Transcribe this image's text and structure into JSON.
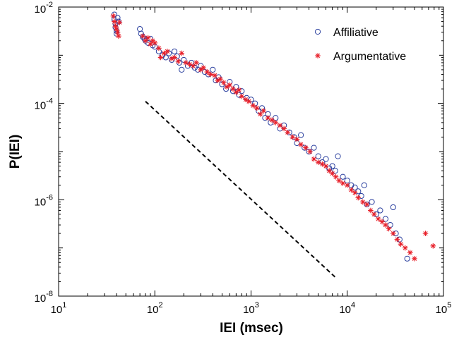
{
  "chart_data": {
    "type": "scatter",
    "title": "",
    "xlabel": "IEI (msec)",
    "ylabel": "P(IEI)",
    "x_scale": "log",
    "y_scale": "log",
    "xlim": [
      10,
      100000
    ],
    "ylim": [
      1e-08,
      0.01
    ],
    "x_ticks": [
      {
        "value": 10,
        "base": "10",
        "exp": "1"
      },
      {
        "value": 100,
        "base": "10",
        "exp": "2"
      },
      {
        "value": 1000,
        "base": "10",
        "exp": "3"
      },
      {
        "value": 10000,
        "base": "10",
        "exp": "4"
      },
      {
        "value": 100000,
        "base": "10",
        "exp": "5"
      }
    ],
    "y_ticks": [
      {
        "value": 1e-08,
        "base": "10",
        "exp": "-8"
      },
      {
        "value": 1e-06,
        "base": "10",
        "exp": "-6"
      },
      {
        "value": 0.0001,
        "base": "10",
        "exp": "-4"
      },
      {
        "value": 0.01,
        "base": "10",
        "exp": "-2"
      }
    ],
    "grid": false,
    "legend_position": "top-right",
    "series": [
      {
        "name": "Affiliative",
        "marker": "circle",
        "color": "#2a3f9e",
        "points": [
          [
            38,
            0.007
          ],
          [
            38,
            0.0055
          ],
          [
            39,
            0.0045
          ],
          [
            39,
            0.0038
          ],
          [
            40,
            0.0032
          ],
          [
            40,
            0.0028
          ],
          [
            41,
            0.006
          ],
          [
            42,
            0.005
          ],
          [
            70,
            0.0035
          ],
          [
            72,
            0.0028
          ],
          [
            75,
            0.0024
          ],
          [
            78,
            0.0022
          ],
          [
            80,
            0.002
          ],
          [
            85,
            0.0018
          ],
          [
            90,
            0.0022
          ],
          [
            95,
            0.0016
          ],
          [
            100,
            0.0015
          ],
          [
            110,
            0.0012
          ],
          [
            120,
            0.001
          ],
          [
            130,
            0.0009
          ],
          [
            140,
            0.0011
          ],
          [
            150,
            0.0008
          ],
          [
            160,
            0.0012
          ],
          [
            170,
            0.00095
          ],
          [
            180,
            0.0007
          ],
          [
            190,
            0.0005
          ],
          [
            200,
            0.0008
          ],
          [
            220,
            0.0006
          ],
          [
            240,
            0.0007
          ],
          [
            260,
            0.00055
          ],
          [
            280,
            0.0005
          ],
          [
            300,
            0.0006
          ],
          [
            330,
            0.00045
          ],
          [
            360,
            0.0004
          ],
          [
            400,
            0.0005
          ],
          [
            430,
            0.0003
          ],
          [
            460,
            0.00035
          ],
          [
            500,
            0.00025
          ],
          [
            550,
            0.0002
          ],
          [
            600,
            0.00028
          ],
          [
            650,
            0.00018
          ],
          [
            700,
            0.00022
          ],
          [
            750,
            0.00015
          ],
          [
            800,
            0.00018
          ],
          [
            900,
            0.00013
          ],
          [
            1000,
            0.00012
          ],
          [
            1100,
            0.0001
          ],
          [
            1200,
            7e-05
          ],
          [
            1300,
            8e-05
          ],
          [
            1400,
            5e-05
          ],
          [
            1500,
            6e-05
          ],
          [
            1600,
            4e-05
          ],
          [
            1800,
            5e-05
          ],
          [
            2000,
            3e-05
          ],
          [
            2200,
            3.5e-05
          ],
          [
            2500,
            2.5e-05
          ],
          [
            2800,
            2e-05
          ],
          [
            3000,
            1.5e-05
          ],
          [
            3300,
            2.2e-05
          ],
          [
            3600,
            1.2e-05
          ],
          [
            4000,
            1e-05
          ],
          [
            4500,
            1.2e-05
          ],
          [
            5000,
            8e-06
          ],
          [
            5500,
            6e-06
          ],
          [
            6000,
            7e-06
          ],
          [
            6500,
            4.5e-06
          ],
          [
            7000,
            5e-06
          ],
          [
            7500,
            4e-06
          ],
          [
            8000,
            8e-06
          ],
          [
            9000,
            3e-06
          ],
          [
            10000,
            2.5e-06
          ],
          [
            11000,
            2e-06
          ],
          [
            12000,
            1.8e-06
          ],
          [
            13000,
            1.5e-06
          ],
          [
            14000,
            1.2e-06
          ],
          [
            15000,
            2e-06
          ],
          [
            16000,
            8e-07
          ],
          [
            18000,
            9e-07
          ],
          [
            20000,
            5e-07
          ],
          [
            22000,
            6e-07
          ],
          [
            25000,
            4e-07
          ],
          [
            28000,
            3e-07
          ],
          [
            30000,
            7e-07
          ],
          [
            32000,
            2e-07
          ],
          [
            35000,
            1.5e-07
          ],
          [
            42000,
            6e-08
          ]
        ]
      },
      {
        "name": "Argumentative",
        "marker": "asterisk",
        "color": "#e8202a",
        "points": [
          [
            37,
            0.0065
          ],
          [
            38,
            0.005
          ],
          [
            39,
            0.004
          ],
          [
            40,
            0.0035
          ],
          [
            41,
            0.003
          ],
          [
            42,
            0.0025
          ],
          [
            43,
            0.0048
          ],
          [
            75,
            0.0025
          ],
          [
            80,
            0.002
          ],
          [
            85,
            0.0023
          ],
          [
            90,
            0.0017
          ],
          [
            95,
            0.002
          ],
          [
            100,
            0.0018
          ],
          [
            110,
            0.0014
          ],
          [
            115,
            0.0009
          ],
          [
            125,
            0.0011
          ],
          [
            135,
            0.0012
          ],
          [
            150,
            0.00085
          ],
          [
            160,
            0.0009
          ],
          [
            175,
            0.00075
          ],
          [
            190,
            0.0011
          ],
          [
            210,
            0.0007
          ],
          [
            230,
            0.00065
          ],
          [
            250,
            0.0006
          ],
          [
            270,
            0.0007
          ],
          [
            300,
            0.0005
          ],
          [
            320,
            0.00055
          ],
          [
            350,
            0.00045
          ],
          [
            380,
            0.0004
          ],
          [
            420,
            0.00038
          ],
          [
            450,
            0.0003
          ],
          [
            480,
            0.00032
          ],
          [
            520,
            0.00027
          ],
          [
            560,
            0.00022
          ],
          [
            600,
            0.00024
          ],
          [
            650,
            0.0002
          ],
          [
            700,
            0.00017
          ],
          [
            750,
            0.00019
          ],
          [
            800,
            0.00014
          ],
          [
            880,
            0.00012
          ],
          [
            950,
            0.00011
          ],
          [
            1050,
            9e-05
          ],
          [
            1150,
            8e-05
          ],
          [
            1250,
            6e-05
          ],
          [
            1350,
            7e-05
          ],
          [
            1500,
            5e-05
          ],
          [
            1650,
            4.5e-05
          ],
          [
            1800,
            4e-05
          ],
          [
            2000,
            3.5e-05
          ],
          [
            2200,
            3e-05
          ],
          [
            2400,
            2.5e-05
          ],
          [
            2700,
            2e-05
          ],
          [
            3000,
            1.8e-05
          ],
          [
            3300,
            1.4e-05
          ],
          [
            3700,
            1.2e-05
          ],
          [
            4100,
            1e-05
          ],
          [
            4500,
            7e-06
          ],
          [
            5000,
            6e-06
          ],
          [
            5500,
            5.5e-06
          ],
          [
            6000,
            5e-06
          ],
          [
            6500,
            4e-06
          ],
          [
            7000,
            3.5e-06
          ],
          [
            7600,
            3e-06
          ],
          [
            8200,
            2.5e-06
          ],
          [
            9000,
            2.2e-06
          ],
          [
            10000,
            2e-06
          ],
          [
            11000,
            1.6e-06
          ],
          [
            12000,
            1.4e-06
          ],
          [
            13000,
            1.1e-06
          ],
          [
            14500,
            9e-07
          ],
          [
            16000,
            8e-07
          ],
          [
            17500,
            6e-07
          ],
          [
            19000,
            5e-07
          ],
          [
            21000,
            4e-07
          ],
          [
            23000,
            3.5e-07
          ],
          [
            25000,
            3e-07
          ],
          [
            27000,
            2.5e-07
          ],
          [
            30000,
            2e-07
          ],
          [
            33000,
            1.5e-07
          ],
          [
            36000,
            1.2e-07
          ],
          [
            40000,
            1e-07
          ],
          [
            45000,
            8e-08
          ],
          [
            50000,
            6e-08
          ],
          [
            65000,
            2e-07
          ],
          [
            78000,
            1.1e-07
          ]
        ]
      }
    ],
    "reference_line": {
      "style": "dashed",
      "color": "#000000",
      "points": [
        [
          80,
          0.00011
        ],
        [
          7800,
          2.3e-08
        ]
      ]
    }
  }
}
